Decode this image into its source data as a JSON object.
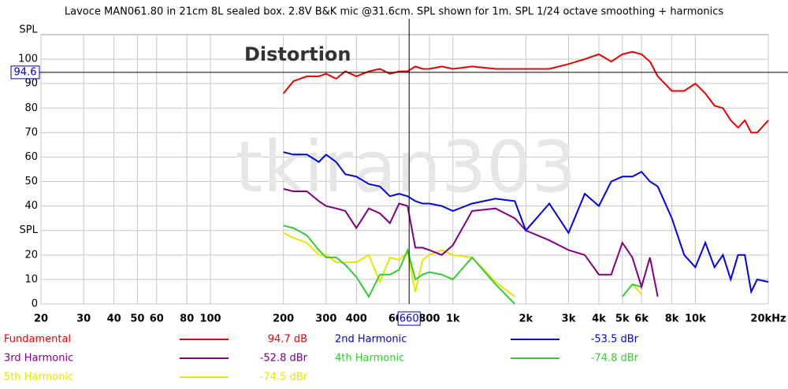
{
  "chart_data": {
    "type": "line",
    "title": "Lavoce MAN061.80 in 21cm 8L sealed box. 2.8V B&K mic @31.6cm. SPL shown for 1m. SPL 1/24 octave smoothing + harmonics",
    "y_label": "SPL",
    "annotation": "Distortion",
    "watermark": "tkiran303",
    "log_x": true,
    "grid": true,
    "xlim": [
      20,
      20000
    ],
    "ylim": [
      0,
      110
    ],
    "xticks": [
      20,
      30,
      40,
      50,
      60,
      80,
      100,
      200,
      300,
      400,
      600,
      800,
      {
        "value": 1000,
        "label": "1k"
      },
      {
        "value": 2000,
        "label": "2k"
      },
      {
        "value": 3000,
        "label": "3k"
      },
      {
        "value": 4000,
        "label": "4k"
      },
      {
        "value": 5000,
        "label": "5k"
      },
      {
        "value": 6000,
        "label": "6k"
      },
      {
        "value": 8000,
        "label": "8k"
      },
      {
        "value": 10000,
        "label": "10k"
      },
      {
        "value": 20000,
        "label": "20kHz"
      }
    ],
    "yticks": [
      0,
      10,
      20,
      {
        "value": 30,
        "label": "SPL"
      },
      40,
      50,
      60,
      70,
      80,
      90,
      100
    ],
    "cursor": {
      "x": 660,
      "y": 94.6
    },
    "x": [
      200,
      220,
      250,
      280,
      300,
      330,
      360,
      400,
      450,
      500,
      550,
      600,
      650,
      700,
      750,
      800,
      900,
      1000,
      1200,
      1500,
      1800,
      2000,
      2500,
      3000,
      3500,
      4000,
      4500,
      5000,
      5500,
      6000,
      6500,
      7000,
      8000,
      9000,
      10000,
      11000,
      12000,
      13000,
      14000,
      15000,
      16000,
      17000,
      18000,
      20000
    ],
    "series": [
      {
        "name": "Fundamental",
        "readout": "94.7 dB",
        "color": "#e60000",
        "values": [
          86,
          91,
          93,
          93,
          94,
          92,
          95,
          93,
          95,
          96,
          94,
          95,
          95,
          97,
          96,
          96,
          97,
          96,
          97,
          96,
          96,
          96,
          96,
          98,
          100,
          102,
          99,
          102,
          103,
          102,
          99,
          93,
          87,
          87,
          90,
          86,
          81,
          80,
          75,
          72,
          75,
          70,
          70,
          75
        ]
      },
      {
        "name": "2nd Harmonic",
        "readout": "-53.5 dBr",
        "color": "#0000e6",
        "values": [
          62,
          61,
          61,
          58,
          61,
          58,
          53,
          52,
          49,
          48,
          44,
          45,
          44,
          42,
          41,
          41,
          40,
          38,
          41,
          43,
          42,
          30,
          41,
          29,
          45,
          40,
          50,
          52,
          52,
          54,
          50,
          48,
          35,
          20,
          15,
          25,
          15,
          20,
          10,
          20,
          20,
          5,
          10,
          9
        ]
      },
      {
        "name": "3rd Harmonic",
        "readout": "-52.8 dBr",
        "color": "#800080",
        "values": [
          47,
          46,
          46,
          42,
          40,
          39,
          38,
          31,
          39,
          37,
          33,
          41,
          40,
          23,
          23,
          22,
          20,
          24,
          38,
          39,
          35,
          30,
          26,
          22,
          20,
          12,
          12,
          25,
          19,
          7,
          19,
          3,
          null,
          null,
          null,
          null,
          null,
          null,
          null,
          null,
          null,
          null,
          null,
          null
        ]
      },
      {
        "name": "4th Harmonic",
        "readout": "-74.8 dBr",
        "color": "#33cc33",
        "values": [
          32,
          31,
          28,
          22,
          19,
          19,
          16,
          11,
          3,
          12,
          12,
          14,
          22,
          10,
          12,
          13,
          12,
          10,
          19,
          8,
          0,
          null,
          null,
          null,
          null,
          null,
          null,
          3,
          8,
          7,
          null,
          null,
          null,
          null,
          null,
          null,
          null,
          null,
          null,
          null,
          null,
          null,
          null,
          null
        ]
      },
      {
        "name": "5th Harmonic",
        "readout": "-74.5 dBr",
        "color": "#e6e600",
        "values": [
          29,
          27,
          25,
          20,
          20,
          17,
          17,
          17,
          20,
          9,
          19,
          18,
          21,
          5,
          18,
          20,
          22,
          20,
          19,
          9,
          3,
          null,
          null,
          null,
          null,
          null,
          null,
          null,
          8,
          4,
          null,
          null,
          null,
          null,
          null,
          null,
          null,
          null,
          null,
          null,
          null,
          null,
          null,
          null
        ]
      }
    ]
  }
}
